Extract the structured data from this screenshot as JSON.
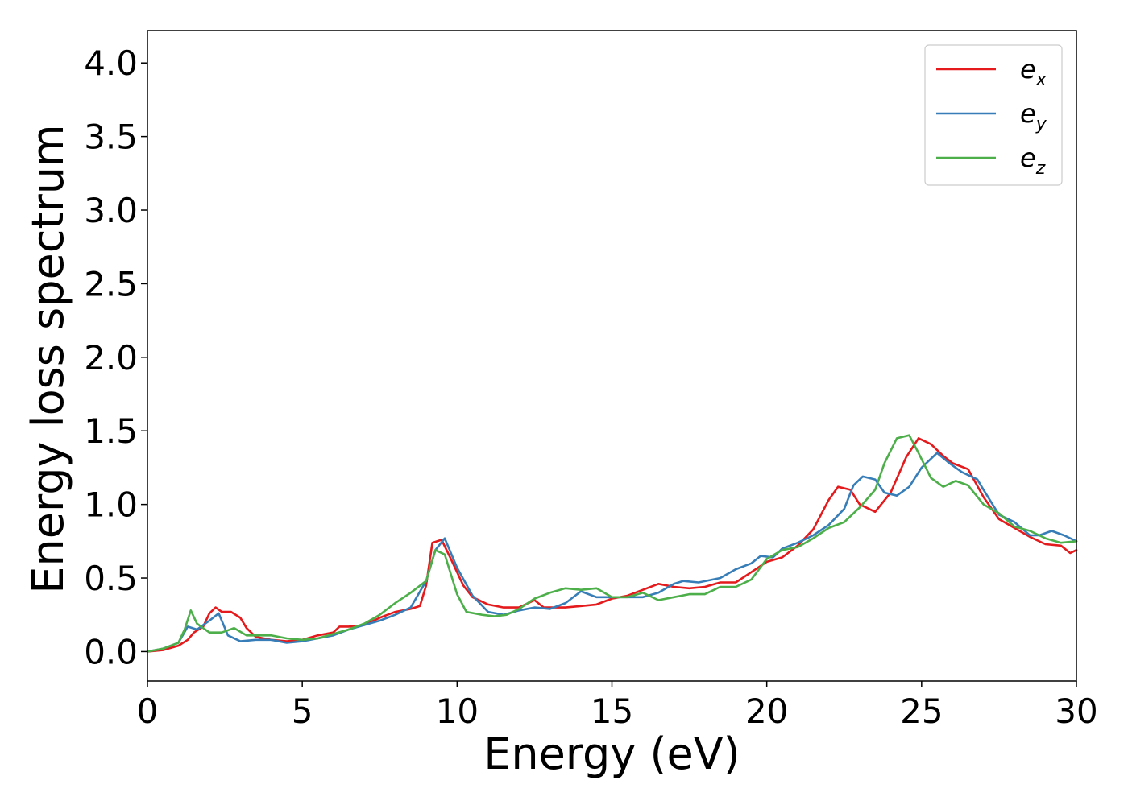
{
  "chart_data": {
    "type": "line",
    "xlabel": "Energy (eV)",
    "ylabel": "Energy loss spectrum",
    "xlim": [
      0,
      30
    ],
    "ylim": [
      -0.2,
      4.22
    ],
    "xticks": [
      0,
      5,
      10,
      15,
      20,
      25,
      30
    ],
    "xtick_labels": [
      "0",
      "5",
      "10",
      "15",
      "20",
      "25",
      "30"
    ],
    "yticks": [
      0.0,
      0.5,
      1.0,
      1.5,
      2.0,
      2.5,
      3.0,
      3.5,
      4.0
    ],
    "ytick_labels": [
      "0.0",
      "0.5",
      "1.0",
      "1.5",
      "2.0",
      "2.5",
      "3.0",
      "3.5",
      "4.0"
    ],
    "grid": false,
    "legend_position": "top-right",
    "series": [
      {
        "name": "ex",
        "name_base": "e",
        "name_sub": "x",
        "color": "#e41a1c",
        "points": [
          [
            0,
            0
          ],
          [
            0.5,
            0.01
          ],
          [
            1.0,
            0.04
          ],
          [
            1.3,
            0.08
          ],
          [
            1.5,
            0.13
          ],
          [
            1.8,
            0.17
          ],
          [
            2.0,
            0.26
          ],
          [
            2.2,
            0.3
          ],
          [
            2.4,
            0.27
          ],
          [
            2.7,
            0.27
          ],
          [
            3.0,
            0.23
          ],
          [
            3.2,
            0.16
          ],
          [
            3.5,
            0.1
          ],
          [
            4.0,
            0.08
          ],
          [
            4.5,
            0.07
          ],
          [
            5.0,
            0.08
          ],
          [
            5.5,
            0.11
          ],
          [
            6.0,
            0.13
          ],
          [
            6.2,
            0.17
          ],
          [
            6.5,
            0.17
          ],
          [
            7.0,
            0.18
          ],
          [
            7.5,
            0.23
          ],
          [
            8.0,
            0.27
          ],
          [
            8.5,
            0.29
          ],
          [
            8.8,
            0.31
          ],
          [
            9.0,
            0.45
          ],
          [
            9.2,
            0.74
          ],
          [
            9.5,
            0.76
          ],
          [
            9.8,
            0.63
          ],
          [
            10.2,
            0.45
          ],
          [
            10.5,
            0.37
          ],
          [
            11.0,
            0.32
          ],
          [
            11.5,
            0.3
          ],
          [
            12.0,
            0.3
          ],
          [
            12.5,
            0.35
          ],
          [
            12.8,
            0.3
          ],
          [
            13.5,
            0.3
          ],
          [
            14.0,
            0.31
          ],
          [
            14.5,
            0.32
          ],
          [
            15.0,
            0.36
          ],
          [
            15.5,
            0.38
          ],
          [
            16.0,
            0.42
          ],
          [
            16.5,
            0.46
          ],
          [
            17.0,
            0.44
          ],
          [
            17.5,
            0.43
          ],
          [
            18.0,
            0.44
          ],
          [
            18.5,
            0.47
          ],
          [
            19.0,
            0.47
          ],
          [
            19.5,
            0.54
          ],
          [
            20.0,
            0.61
          ],
          [
            20.5,
            0.64
          ],
          [
            21.0,
            0.72
          ],
          [
            21.5,
            0.83
          ],
          [
            22.0,
            1.03
          ],
          [
            22.3,
            1.12
          ],
          [
            22.7,
            1.1
          ],
          [
            23.0,
            1.0
          ],
          [
            23.5,
            0.95
          ],
          [
            24.0,
            1.08
          ],
          [
            24.5,
            1.32
          ],
          [
            24.9,
            1.45
          ],
          [
            25.3,
            1.41
          ],
          [
            25.7,
            1.33
          ],
          [
            26.0,
            1.28
          ],
          [
            26.5,
            1.24
          ],
          [
            27.0,
            1.05
          ],
          [
            27.5,
            0.9
          ],
          [
            28.0,
            0.84
          ],
          [
            28.5,
            0.78
          ],
          [
            29.0,
            0.73
          ],
          [
            29.5,
            0.72
          ],
          [
            29.8,
            0.67
          ],
          [
            30.0,
            0.69
          ]
        ]
      },
      {
        "name": "ey",
        "name_base": "e",
        "name_sub": "y",
        "color": "#377eb8",
        "points": [
          [
            0,
            0
          ],
          [
            0.5,
            0.02
          ],
          [
            1.0,
            0.06
          ],
          [
            1.3,
            0.17
          ],
          [
            1.6,
            0.15
          ],
          [
            2.0,
            0.21
          ],
          [
            2.3,
            0.26
          ],
          [
            2.6,
            0.11
          ],
          [
            3.0,
            0.07
          ],
          [
            3.5,
            0.08
          ],
          [
            4.0,
            0.08
          ],
          [
            4.5,
            0.06
          ],
          [
            5.0,
            0.07
          ],
          [
            5.5,
            0.09
          ],
          [
            6.0,
            0.11
          ],
          [
            6.5,
            0.15
          ],
          [
            7.0,
            0.18
          ],
          [
            7.5,
            0.21
          ],
          [
            8.0,
            0.25
          ],
          [
            8.5,
            0.3
          ],
          [
            9.0,
            0.48
          ],
          [
            9.3,
            0.69
          ],
          [
            9.6,
            0.77
          ],
          [
            10.0,
            0.57
          ],
          [
            10.5,
            0.38
          ],
          [
            11.0,
            0.27
          ],
          [
            11.5,
            0.25
          ],
          [
            12.0,
            0.28
          ],
          [
            12.5,
            0.3
          ],
          [
            13.0,
            0.29
          ],
          [
            13.5,
            0.33
          ],
          [
            14.0,
            0.41
          ],
          [
            14.5,
            0.37
          ],
          [
            15.0,
            0.37
          ],
          [
            15.5,
            0.37
          ],
          [
            16.0,
            0.37
          ],
          [
            16.5,
            0.4
          ],
          [
            17.0,
            0.46
          ],
          [
            17.3,
            0.48
          ],
          [
            17.8,
            0.47
          ],
          [
            18.5,
            0.5
          ],
          [
            19.0,
            0.56
          ],
          [
            19.5,
            0.6
          ],
          [
            19.8,
            0.65
          ],
          [
            20.2,
            0.64
          ],
          [
            20.5,
            0.7
          ],
          [
            21.0,
            0.74
          ],
          [
            21.5,
            0.79
          ],
          [
            22.0,
            0.86
          ],
          [
            22.5,
            0.97
          ],
          [
            22.8,
            1.13
          ],
          [
            23.1,
            1.19
          ],
          [
            23.5,
            1.17
          ],
          [
            23.8,
            1.08
          ],
          [
            24.2,
            1.06
          ],
          [
            24.6,
            1.12
          ],
          [
            25.0,
            1.25
          ],
          [
            25.5,
            1.35
          ],
          [
            25.9,
            1.28
          ],
          [
            26.3,
            1.22
          ],
          [
            26.8,
            1.17
          ],
          [
            27.0,
            1.1
          ],
          [
            27.5,
            0.93
          ],
          [
            28.0,
            0.88
          ],
          [
            28.5,
            0.79
          ],
          [
            28.8,
            0.79
          ],
          [
            29.2,
            0.82
          ],
          [
            29.6,
            0.79
          ],
          [
            30.0,
            0.75
          ]
        ]
      },
      {
        "name": "ez",
        "name_base": "e",
        "name_sub": "z",
        "color": "#4daf4a",
        "points": [
          [
            0,
            0
          ],
          [
            0.5,
            0.02
          ],
          [
            1.0,
            0.06
          ],
          [
            1.2,
            0.15
          ],
          [
            1.4,
            0.28
          ],
          [
            1.6,
            0.19
          ],
          [
            2.0,
            0.13
          ],
          [
            2.4,
            0.13
          ],
          [
            2.8,
            0.16
          ],
          [
            3.2,
            0.11
          ],
          [
            3.6,
            0.11
          ],
          [
            4.0,
            0.11
          ],
          [
            4.5,
            0.09
          ],
          [
            5.0,
            0.08
          ],
          [
            5.5,
            0.09
          ],
          [
            6.0,
            0.12
          ],
          [
            6.5,
            0.15
          ],
          [
            7.0,
            0.19
          ],
          [
            7.5,
            0.25
          ],
          [
            8.0,
            0.33
          ],
          [
            8.5,
            0.4
          ],
          [
            9.0,
            0.48
          ],
          [
            9.3,
            0.69
          ],
          [
            9.6,
            0.66
          ],
          [
            10.0,
            0.39
          ],
          [
            10.3,
            0.27
          ],
          [
            10.8,
            0.25
          ],
          [
            11.2,
            0.24
          ],
          [
            11.6,
            0.25
          ],
          [
            12.0,
            0.29
          ],
          [
            12.5,
            0.36
          ],
          [
            13.0,
            0.4
          ],
          [
            13.5,
            0.43
          ],
          [
            14.0,
            0.42
          ],
          [
            14.5,
            0.43
          ],
          [
            15.0,
            0.37
          ],
          [
            15.5,
            0.37
          ],
          [
            16.0,
            0.4
          ],
          [
            16.5,
            0.35
          ],
          [
            17.0,
            0.37
          ],
          [
            17.5,
            0.39
          ],
          [
            18.0,
            0.39
          ],
          [
            18.5,
            0.44
          ],
          [
            19.0,
            0.44
          ],
          [
            19.5,
            0.49
          ],
          [
            20.0,
            0.63
          ],
          [
            20.5,
            0.69
          ],
          [
            21.0,
            0.71
          ],
          [
            21.5,
            0.77
          ],
          [
            22.0,
            0.84
          ],
          [
            22.5,
            0.88
          ],
          [
            23.0,
            0.98
          ],
          [
            23.5,
            1.1
          ],
          [
            23.8,
            1.28
          ],
          [
            24.2,
            1.45
          ],
          [
            24.6,
            1.47
          ],
          [
            24.9,
            1.35
          ],
          [
            25.3,
            1.18
          ],
          [
            25.7,
            1.12
          ],
          [
            26.1,
            1.16
          ],
          [
            26.5,
            1.13
          ],
          [
            27.0,
            1.0
          ],
          [
            27.5,
            0.94
          ],
          [
            28.0,
            0.85
          ],
          [
            28.5,
            0.82
          ],
          [
            29.0,
            0.77
          ],
          [
            29.5,
            0.74
          ],
          [
            30.0,
            0.75
          ]
        ]
      }
    ]
  }
}
